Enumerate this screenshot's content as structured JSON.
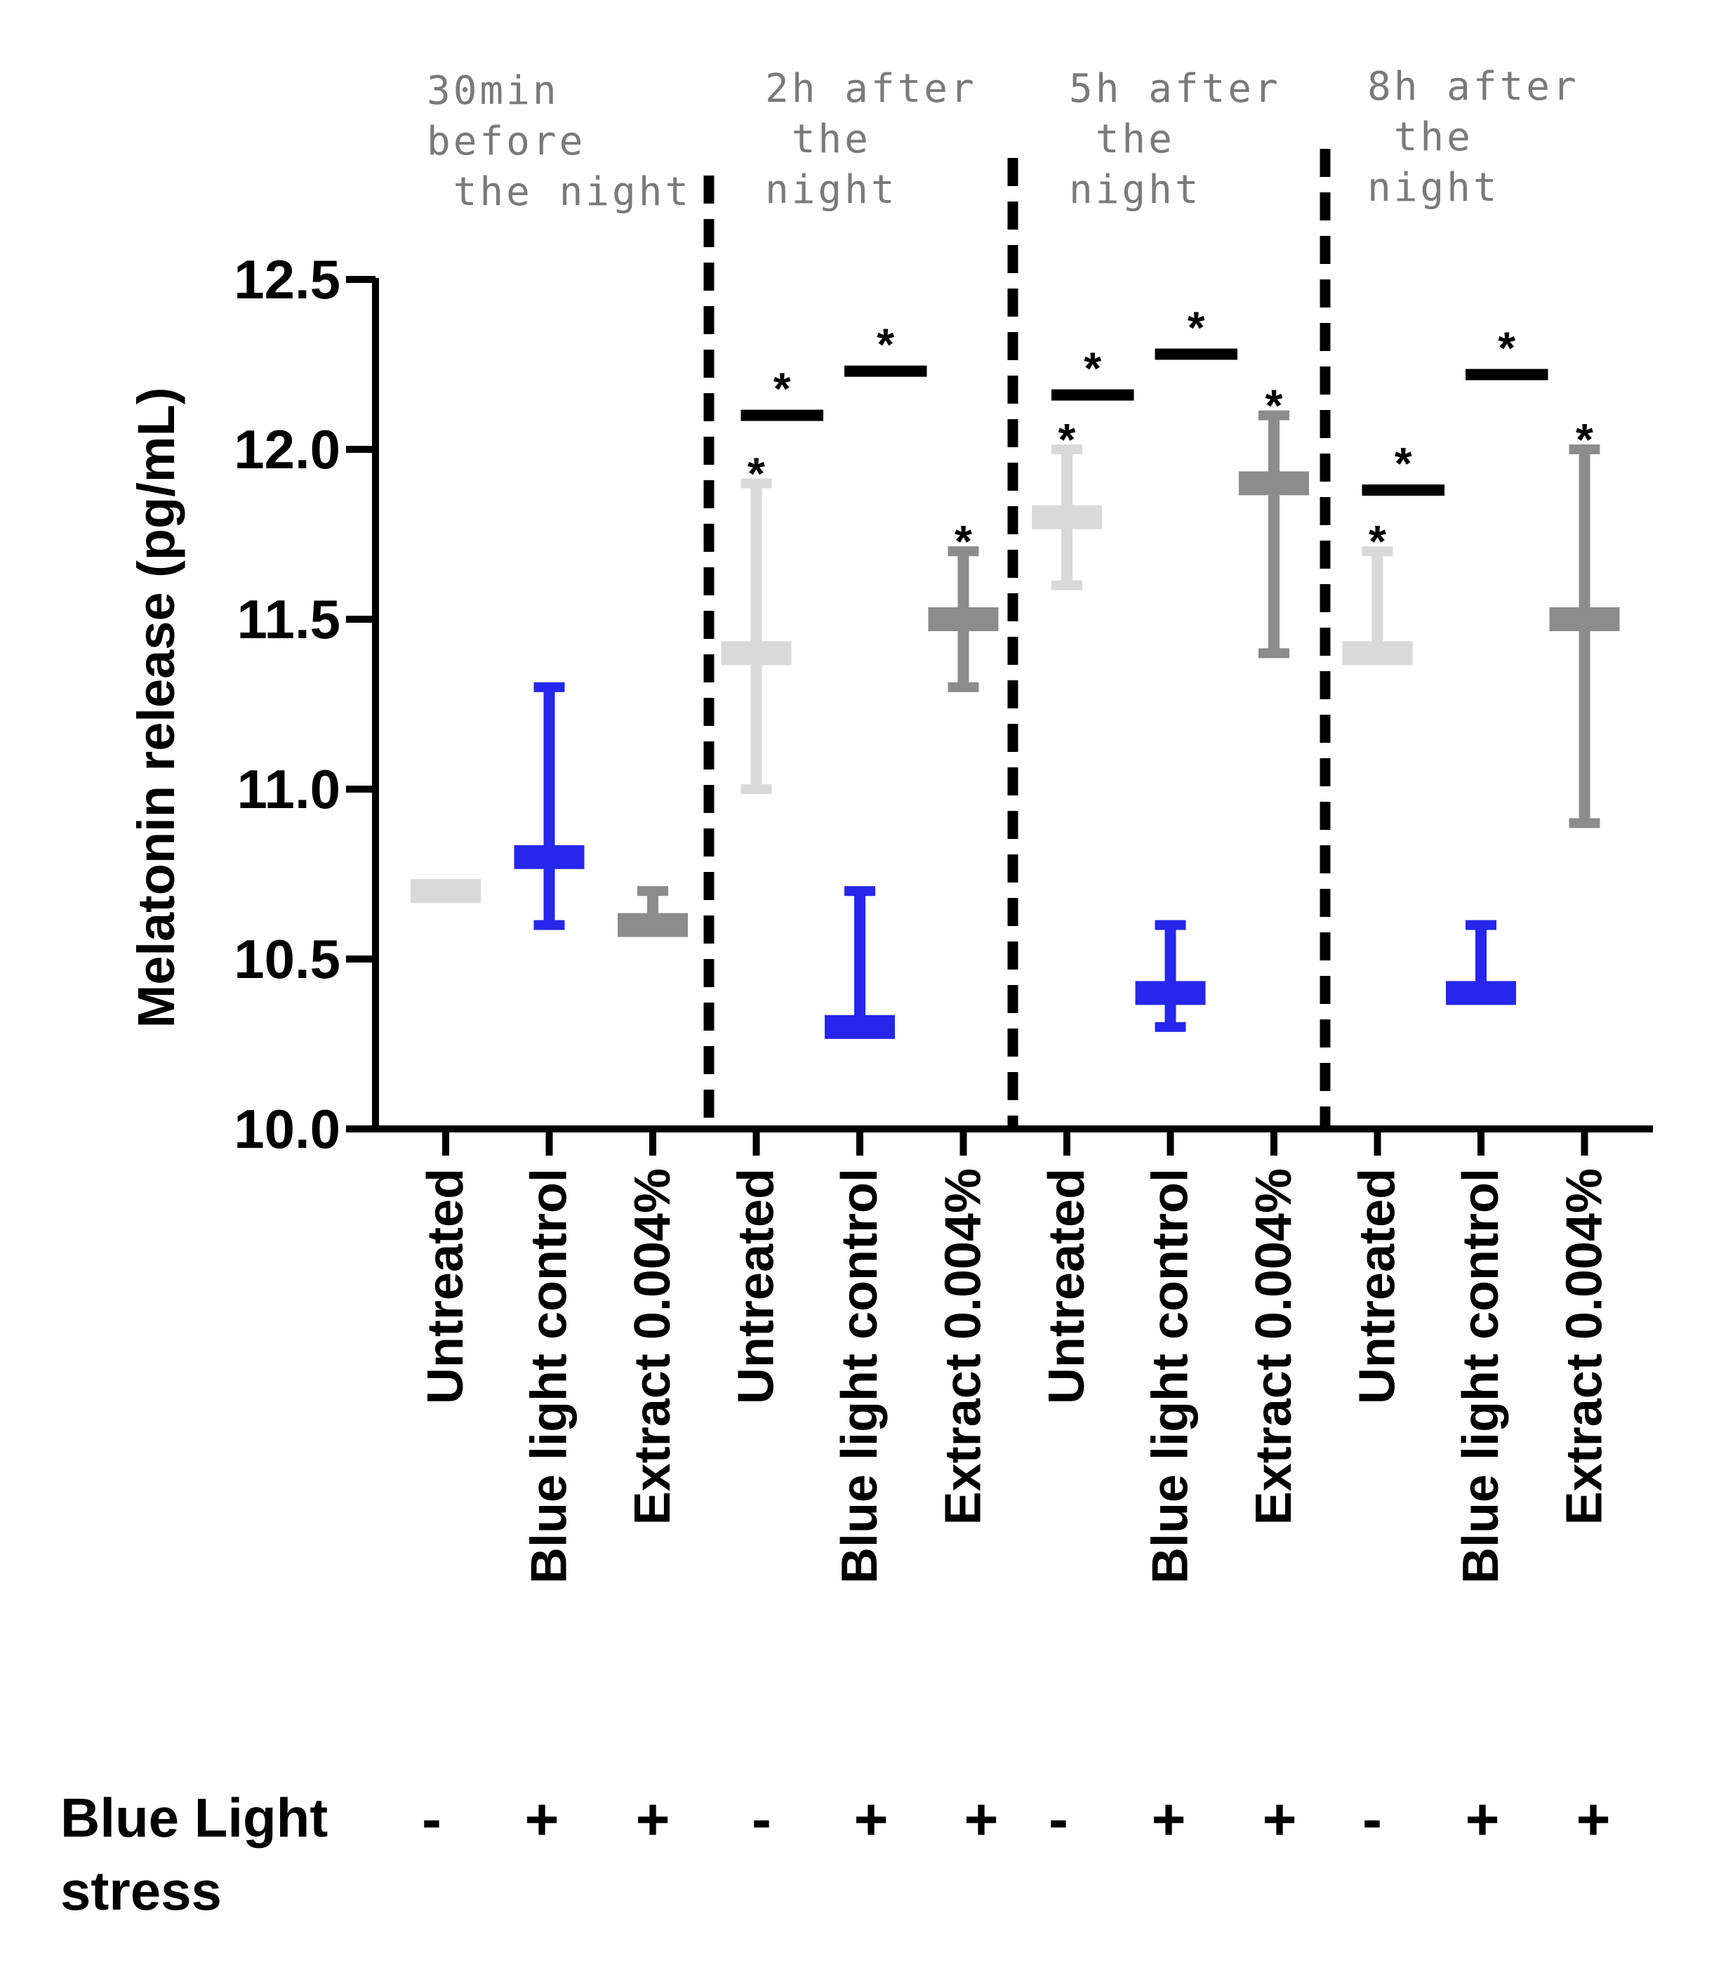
{
  "chart_data": {
    "type": "errorbar",
    "ylabel": "Melatonin release (pg/mL)",
    "ylim": [
      10.0,
      12.5
    ],
    "yticks": [
      "12.5",
      "12.0",
      "11.5",
      "11.0",
      "10.5",
      "10.0"
    ],
    "categories": [
      "Untreated",
      "Blue light control",
      "Extract 0.004%",
      "Untreated",
      "Blue light control",
      "Extract 0.004%",
      "Untreated",
      "Blue light control",
      "Extract 0.004%",
      "Untreated",
      "Blue light control",
      "Extract 0.004%"
    ],
    "period_labels": [
      [
        "30min",
        "before",
        " the night"
      ],
      [
        "2h after",
        " the",
        "night"
      ],
      [
        "5h after",
        " the",
        "night"
      ],
      [
        "8h after",
        " the",
        "night"
      ]
    ],
    "series": [
      {
        "group": "Untreated",
        "color": "#d9d9d9",
        "points": [
          {
            "mean": 10.7,
            "low": 10.7,
            "high": 10.7
          },
          {
            "mean": 11.4,
            "low": 11.0,
            "high": 11.9
          },
          {
            "mean": 11.8,
            "low": 11.6,
            "high": 12.0
          },
          {
            "mean": 11.4,
            "low": 11.4,
            "high": 11.7
          }
        ]
      },
      {
        "group": "Blue light control",
        "color": "#2626ec",
        "points": [
          {
            "mean": 10.8,
            "low": 10.6,
            "high": 11.3
          },
          {
            "mean": 10.3,
            "low": 10.3,
            "high": 10.7
          },
          {
            "mean": 10.4,
            "low": 10.3,
            "high": 10.6
          },
          {
            "mean": 10.4,
            "low": 10.4,
            "high": 10.6
          }
        ]
      },
      {
        "group": "Extract 0.004%",
        "color": "#8c8c8c",
        "points": [
          {
            "mean": 10.6,
            "low": 10.6,
            "high": 10.7
          },
          {
            "mean": 11.5,
            "low": 11.3,
            "high": 11.7
          },
          {
            "mean": 11.9,
            "low": 11.4,
            "high": 12.1
          },
          {
            "mean": 11.5,
            "low": 10.9,
            "high": 12.0
          }
        ]
      }
    ],
    "significance_stars": [
      {
        "index": 3,
        "y": 11.9
      },
      {
        "index": 5,
        "y": 11.7
      },
      {
        "index": 6,
        "y": 12.0
      },
      {
        "index": 8,
        "y": 12.1
      },
      {
        "index": 9,
        "y": 11.7
      },
      {
        "index": 11,
        "y": 12.0
      }
    ],
    "significance_brackets": [
      {
        "from": 3,
        "to": 4,
        "y": 12.1
      },
      {
        "from": 4,
        "to": 5,
        "y": 12.23
      },
      {
        "from": 6,
        "to": 7,
        "y": 12.16
      },
      {
        "from": 7,
        "to": 8,
        "y": 12.28
      },
      {
        "from": 9,
        "to": 10,
        "y": 11.88
      },
      {
        "from": 10,
        "to": 11,
        "y": 12.22
      }
    ],
    "star_symbol": "*",
    "stress_label_line1": "Blue Light",
    "stress_label_line2": "stress",
    "stress_signs": [
      "-",
      "+",
      "+",
      "-",
      "+",
      "+",
      "-",
      "+",
      "+",
      "-",
      "+",
      "+"
    ]
  }
}
